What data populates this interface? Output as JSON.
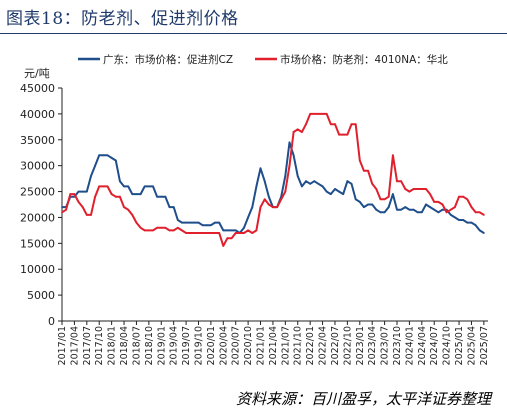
{
  "figure": {
    "title": "图表18：防老剂、促进剂价格",
    "source": "资料来源：百川盈孚，太平洋证券整理"
  },
  "colors": {
    "title": "#1f3a6b",
    "series_cz": "#1f4e8c",
    "series_4010": "#e0202c"
  },
  "chart_data": {
    "type": "line",
    "title": "",
    "xlabel": "",
    "ylabel": "元/吨",
    "ylim": [
      0,
      45000
    ],
    "yticks": [
      0,
      5000,
      10000,
      15000,
      20000,
      25000,
      30000,
      35000,
      40000,
      45000
    ],
    "xlim": [
      "2017-01",
      "2025-08"
    ],
    "xticks": [
      "2017/01",
      "2017/04",
      "2017/07",
      "2017/10",
      "2018/01",
      "2018/04",
      "2018/07",
      "2018/10",
      "2019/01",
      "2019/04",
      "2019/07",
      "2019/10",
      "2020/01",
      "2020/04",
      "2020/07",
      "2020/10",
      "2021/01",
      "2021/04",
      "2021/07",
      "2021/10",
      "2022/01",
      "2022/04",
      "2022/07",
      "2022/10",
      "2023/01",
      "2023/04",
      "2023/07",
      "2023/10",
      "2024/01",
      "2024/04",
      "2024/07",
      "2024/10",
      "2025/01",
      "2025/04",
      "2025/07"
    ],
    "grid": false,
    "legend": "top",
    "series": [
      {
        "name": "广东：市场价格：促进剂CZ",
        "color": "#1f4e8c",
        "points": [
          [
            "2017-01",
            22000
          ],
          [
            "2017-02",
            22000
          ],
          [
            "2017-03",
            24000
          ],
          [
            "2017-04",
            24000
          ],
          [
            "2017-05",
            25000
          ],
          [
            "2017-06",
            25000
          ],
          [
            "2017-07",
            25000
          ],
          [
            "2017-08",
            28000
          ],
          [
            "2017-09",
            30000
          ],
          [
            "2017-10",
            32000
          ],
          [
            "2017-11",
            32000
          ],
          [
            "2017-12",
            32000
          ],
          [
            "2018-01",
            31500
          ],
          [
            "2018-02",
            31000
          ],
          [
            "2018-03",
            27000
          ],
          [
            "2018-04",
            26000
          ],
          [
            "2018-05",
            26000
          ],
          [
            "2018-06",
            24500
          ],
          [
            "2018-07",
            24500
          ],
          [
            "2018-08",
            24500
          ],
          [
            "2018-09",
            26000
          ],
          [
            "2018-10",
            26000
          ],
          [
            "2018-11",
            26000
          ],
          [
            "2018-12",
            24000
          ],
          [
            "2019-01",
            24000
          ],
          [
            "2019-02",
            24000
          ],
          [
            "2019-03",
            22000
          ],
          [
            "2019-04",
            22000
          ],
          [
            "2019-05",
            19500
          ],
          [
            "2019-06",
            19000
          ],
          [
            "2019-07",
            19000
          ],
          [
            "2019-08",
            19000
          ],
          [
            "2019-09",
            19000
          ],
          [
            "2019-10",
            19000
          ],
          [
            "2019-11",
            18500
          ],
          [
            "2019-12",
            18500
          ],
          [
            "2020-01",
            18500
          ],
          [
            "2020-02",
            19000
          ],
          [
            "2020-03",
            19000
          ],
          [
            "2020-04",
            17500
          ],
          [
            "2020-05",
            17500
          ],
          [
            "2020-06",
            17500
          ],
          [
            "2020-07",
            17500
          ],
          [
            "2020-08",
            17000
          ],
          [
            "2020-09",
            18000
          ],
          [
            "2020-10",
            20000
          ],
          [
            "2020-11",
            22000
          ],
          [
            "2020-12",
            26000
          ],
          [
            "2021-01",
            29500
          ],
          [
            "2021-02",
            27000
          ],
          [
            "2021-03",
            24000
          ],
          [
            "2021-04",
            22000
          ],
          [
            "2021-05",
            22000
          ],
          [
            "2021-06",
            24000
          ],
          [
            "2021-07",
            28000
          ],
          [
            "2021-08",
            34500
          ],
          [
            "2021-09",
            32000
          ],
          [
            "2021-10",
            28000
          ],
          [
            "2021-11",
            26000
          ],
          [
            "2021-12",
            27000
          ],
          [
            "2022-01",
            26500
          ],
          [
            "2022-02",
            27000
          ],
          [
            "2022-03",
            26500
          ],
          [
            "2022-04",
            26000
          ],
          [
            "2022-05",
            25000
          ],
          [
            "2022-06",
            24500
          ],
          [
            "2022-07",
            25500
          ],
          [
            "2022-08",
            25000
          ],
          [
            "2022-09",
            24500
          ],
          [
            "2022-10",
            27000
          ],
          [
            "2022-11",
            26500
          ],
          [
            "2022-12",
            23500
          ],
          [
            "2023-01",
            23000
          ],
          [
            "2023-02",
            22000
          ],
          [
            "2023-03",
            22500
          ],
          [
            "2023-04",
            22500
          ],
          [
            "2023-05",
            21500
          ],
          [
            "2023-06",
            21000
          ],
          [
            "2023-07",
            21000
          ],
          [
            "2023-08",
            22000
          ],
          [
            "2023-09",
            24500
          ],
          [
            "2023-10",
            21500
          ],
          [
            "2023-11",
            21500
          ],
          [
            "2023-12",
            22000
          ],
          [
            "2024-01",
            21500
          ],
          [
            "2024-02",
            21500
          ],
          [
            "2024-03",
            21000
          ],
          [
            "2024-04",
            21000
          ],
          [
            "2024-05",
            22500
          ],
          [
            "2024-06",
            22000
          ],
          [
            "2024-07",
            21500
          ],
          [
            "2024-08",
            21000
          ],
          [
            "2024-09",
            21500
          ],
          [
            "2024-10",
            21500
          ],
          [
            "2024-11",
            20500
          ],
          [
            "2024-12",
            20000
          ],
          [
            "2025-01",
            19500
          ],
          [
            "2025-02",
            19500
          ],
          [
            "2025-03",
            19000
          ],
          [
            "2025-04",
            19000
          ],
          [
            "2025-05",
            18500
          ],
          [
            "2025-06",
            17500
          ],
          [
            "2025-07",
            17000
          ]
        ]
      },
      {
        "name": "市场价格：防老剂：4010NA：华北",
        "color": "#e0202c",
        "points": [
          [
            "2017-01",
            21000
          ],
          [
            "2017-02",
            21500
          ],
          [
            "2017-03",
            24500
          ],
          [
            "2017-04",
            24500
          ],
          [
            "2017-05",
            23000
          ],
          [
            "2017-06",
            22000
          ],
          [
            "2017-07",
            20500
          ],
          [
            "2017-08",
            20500
          ],
          [
            "2017-09",
            24000
          ],
          [
            "2017-10",
            26000
          ],
          [
            "2017-11",
            26000
          ],
          [
            "2017-12",
            26000
          ],
          [
            "2018-01",
            24500
          ],
          [
            "2018-02",
            24000
          ],
          [
            "2018-03",
            24000
          ],
          [
            "2018-04",
            22000
          ],
          [
            "2018-05",
            21500
          ],
          [
            "2018-06",
            20500
          ],
          [
            "2018-07",
            19000
          ],
          [
            "2018-08",
            18000
          ],
          [
            "2018-09",
            17500
          ],
          [
            "2018-10",
            17500
          ],
          [
            "2018-11",
            17500
          ],
          [
            "2018-12",
            18000
          ],
          [
            "2019-01",
            18000
          ],
          [
            "2019-02",
            18000
          ],
          [
            "2019-03",
            17500
          ],
          [
            "2019-04",
            17500
          ],
          [
            "2019-05",
            18000
          ],
          [
            "2019-06",
            17500
          ],
          [
            "2019-07",
            17000
          ],
          [
            "2019-08",
            17000
          ],
          [
            "2019-09",
            17000
          ],
          [
            "2019-10",
            17000
          ],
          [
            "2019-11",
            17000
          ],
          [
            "2019-12",
            17000
          ],
          [
            "2020-01",
            17000
          ],
          [
            "2020-02",
            17000
          ],
          [
            "2020-03",
            17000
          ],
          [
            "2020-04",
            14500
          ],
          [
            "2020-05",
            16000
          ],
          [
            "2020-06",
            16000
          ],
          [
            "2020-07",
            17000
          ],
          [
            "2020-08",
            17000
          ],
          [
            "2020-09",
            17000
          ],
          [
            "2020-10",
            17500
          ],
          [
            "2020-11",
            17000
          ],
          [
            "2020-12",
            17500
          ],
          [
            "2021-01",
            22000
          ],
          [
            "2021-02",
            23500
          ],
          [
            "2021-03",
            22500
          ],
          [
            "2021-04",
            22000
          ],
          [
            "2021-05",
            22000
          ],
          [
            "2021-06",
            23500
          ],
          [
            "2021-07",
            25000
          ],
          [
            "2021-08",
            30000
          ],
          [
            "2021-09",
            36500
          ],
          [
            "2021-10",
            37000
          ],
          [
            "2021-11",
            36500
          ],
          [
            "2021-12",
            38000
          ],
          [
            "2022-01",
            40000
          ],
          [
            "2022-02",
            40000
          ],
          [
            "2022-03",
            40000
          ],
          [
            "2022-04",
            40000
          ],
          [
            "2022-05",
            40000
          ],
          [
            "2022-06",
            38000
          ],
          [
            "2022-07",
            38000
          ],
          [
            "2022-08",
            36000
          ],
          [
            "2022-09",
            36000
          ],
          [
            "2022-10",
            36000
          ],
          [
            "2022-11",
            38000
          ],
          [
            "2022-12",
            38000
          ],
          [
            "2023-01",
            31000
          ],
          [
            "2023-02",
            29000
          ],
          [
            "2023-03",
            29000
          ],
          [
            "2023-04",
            26500
          ],
          [
            "2023-05",
            25500
          ],
          [
            "2023-06",
            23500
          ],
          [
            "2023-07",
            23500
          ],
          [
            "2023-08",
            24000
          ],
          [
            "2023-09",
            32000
          ],
          [
            "2023-10",
            27000
          ],
          [
            "2023-11",
            27000
          ],
          [
            "2023-12",
            25500
          ],
          [
            "2024-01",
            25000
          ],
          [
            "2024-02",
            25500
          ],
          [
            "2024-03",
            25500
          ],
          [
            "2024-04",
            25500
          ],
          [
            "2024-05",
            25500
          ],
          [
            "2024-06",
            24500
          ],
          [
            "2024-07",
            23000
          ],
          [
            "2024-08",
            23000
          ],
          [
            "2024-09",
            22500
          ],
          [
            "2024-10",
            21000
          ],
          [
            "2024-11",
            21500
          ],
          [
            "2024-12",
            22000
          ],
          [
            "2025-01",
            24000
          ],
          [
            "2025-02",
            24000
          ],
          [
            "2025-03",
            23500
          ],
          [
            "2025-04",
            22000
          ],
          [
            "2025-05",
            21000
          ],
          [
            "2025-06",
            21000
          ],
          [
            "2025-07",
            20500
          ]
        ]
      }
    ]
  }
}
